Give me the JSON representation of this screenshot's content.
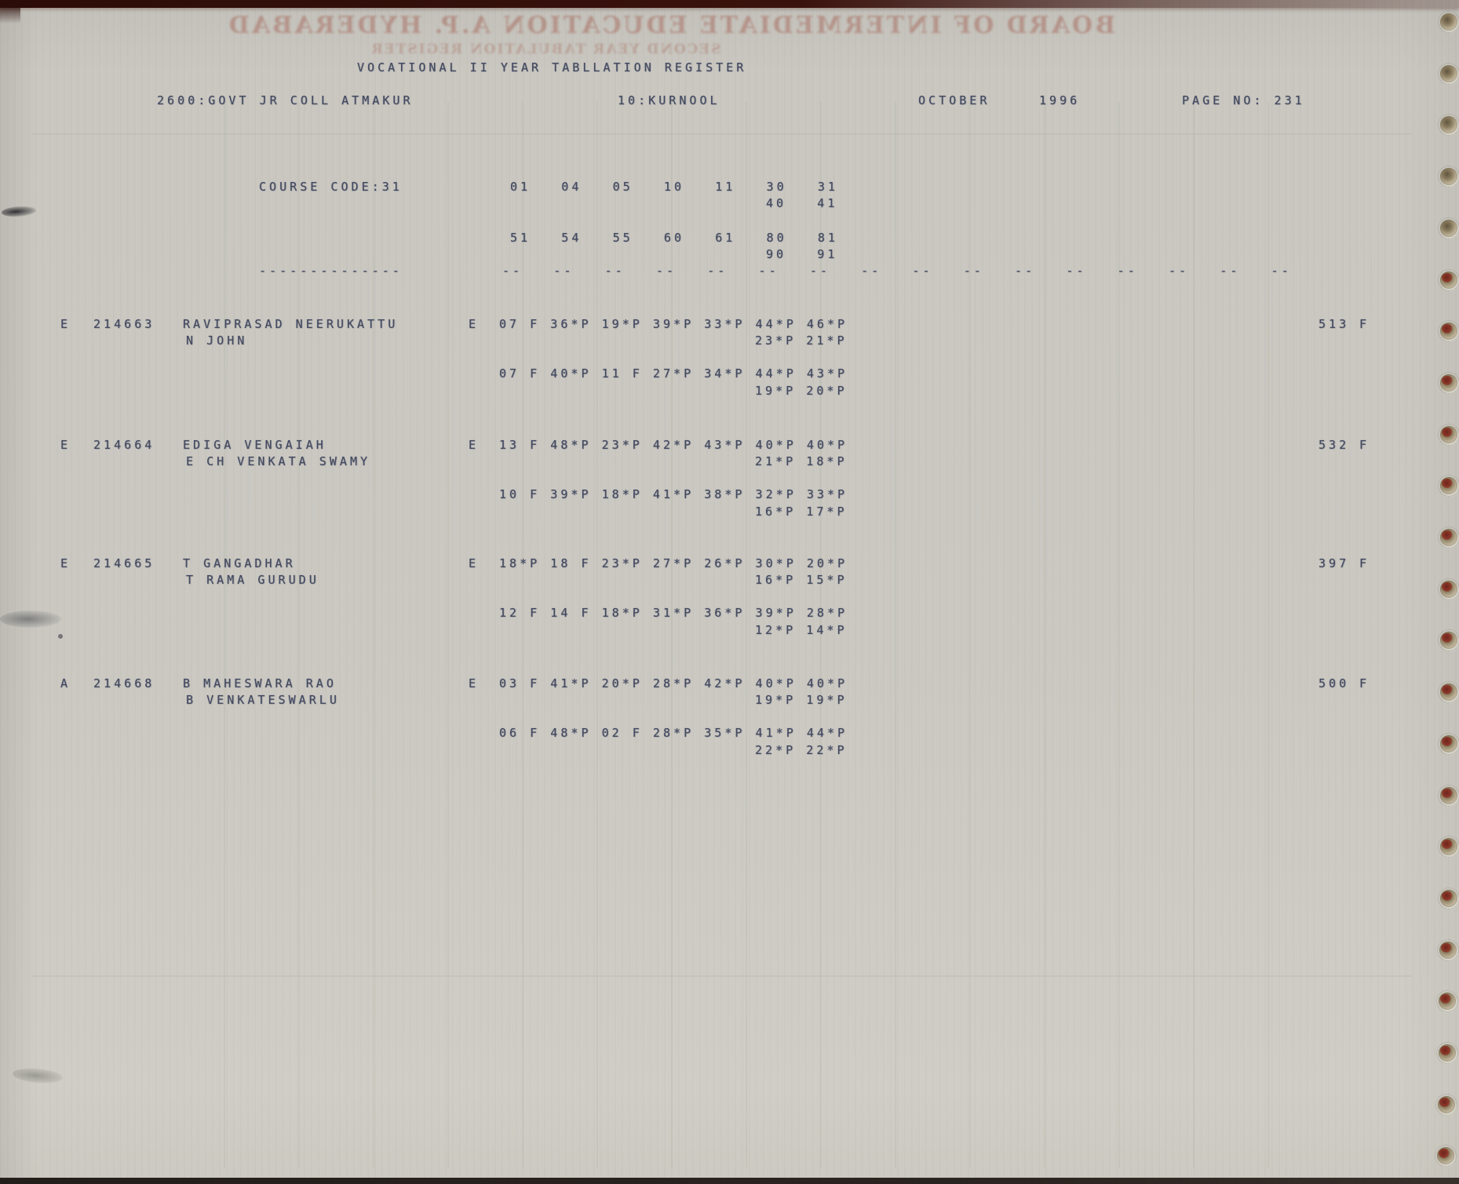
{
  "header": {
    "title": "VOCATIONAL II YEAR TABLLATION REGISTER",
    "college": "2600:GOVT JR COLL ATMAKUR",
    "district": "10:KURNOOL",
    "month": "OCTOBER",
    "year": "1996",
    "page_label": "PAGE NO: 231"
  },
  "course": {
    "label": "COURSE CODE:31",
    "codes_row1_line1": "01   04   05   10   11   30   31",
    "codes_row1_line2": "40   41",
    "codes_row2_line1": "51   54   55   60   61   80   81",
    "codes_row2_line2": "90   91"
  },
  "separator": {
    "name_dashes": "--------------",
    "column_dashes": "--   --   --   --   --   --   --   --   --   --   --   --   --   --   --   --"
  },
  "students": [
    {
      "flag": "E",
      "roll": "214663",
      "name": "RAVIPRASAD NEERUKATTU",
      "father": "N JOHN",
      "medium": "E",
      "a1_line1": "07 F 36*P 19*P 39*P 33*P 44*P 46*P",
      "a1_line2": "23*P 21*P",
      "a2_line1": "07 F 40*P 11 F 27*P 34*P 44*P 43*P",
      "a2_line2": "19*P 20*P",
      "total": "513",
      "result": "F"
    },
    {
      "flag": "E",
      "roll": "214664",
      "name": "EDIGA VENGAIAH",
      "father": "E CH VENKATA SWAMY",
      "medium": "E",
      "a1_line1": "13 F 48*P 23*P 42*P 43*P 40*P 40*P",
      "a1_line2": "21*P 18*P",
      "a2_line1": "10 F 39*P 18*P 41*P 38*P 32*P 33*P",
      "a2_line2": "16*P 17*P",
      "total": "532",
      "result": "F"
    },
    {
      "flag": "E",
      "roll": "214665",
      "name": "T GANGADHAR",
      "father": "T RAMA GURUDU",
      "medium": "E",
      "a1_line1": "18*P 18 F 23*P 27*P 26*P 30*P 20*P",
      "a1_line2": "16*P 15*P",
      "a2_line1": "12 F 14 F 18*P 31*P 36*P 39*P 28*P",
      "a2_line2": "12*P 14*P",
      "total": "397",
      "result": "F"
    },
    {
      "flag": "A",
      "roll": "214668",
      "name": "B MAHESWARA RAO",
      "father": "B VENKATESWARLU",
      "medium": "E",
      "a1_line1": "03 F 41*P 20*P 28*P 42*P 40*P 40*P",
      "a1_line2": "19*P 19*P",
      "a2_line1": "06 F 48*P 02 F 28*P 35*P 41*P 44*P",
      "a2_line2": "22*P 22*P",
      "total": "500",
      "result": "F"
    }
  ],
  "ghost": {
    "line1": "BOARD OF INTERMEDIATE EDUCATION A.P. HYDERABAD",
    "line2": "SECOND YEAR TABULATION REGISTER"
  }
}
